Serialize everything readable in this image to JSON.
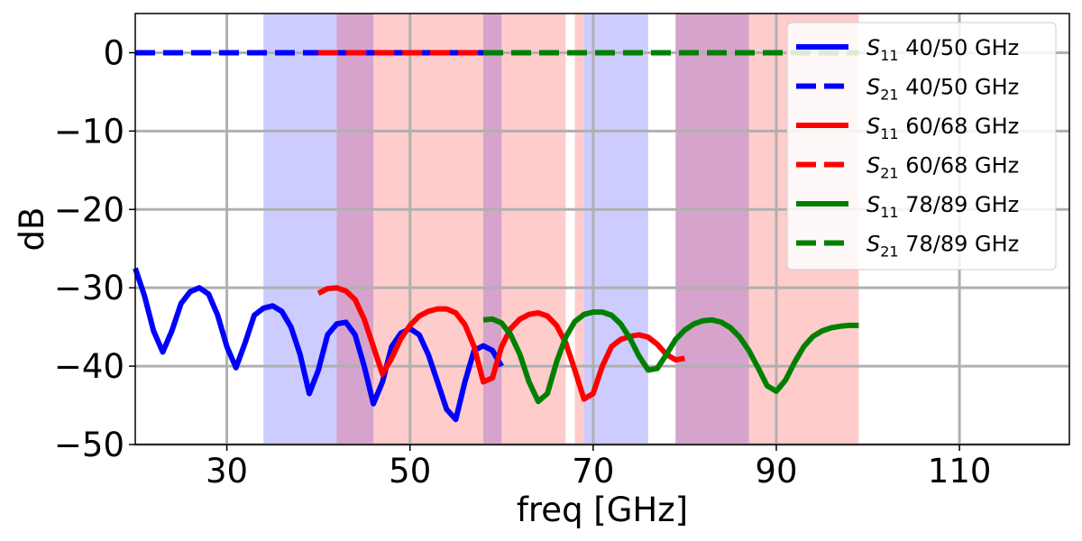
{
  "chart_data": {
    "type": "line",
    "xlabel": "freq [GHz]",
    "ylabel": "dB",
    "xlim": [
      20,
      122
    ],
    "ylim": [
      -50,
      5
    ],
    "grid": true,
    "legend_position": "upper-right",
    "x_ticks": [
      30,
      50,
      70,
      90,
      110
    ],
    "y_ticks": [
      0,
      -10,
      -20,
      -30,
      -40,
      -50
    ],
    "y_tick_labels": [
      "0",
      "−10",
      "−20",
      "−30",
      "−40",
      "−50"
    ],
    "bands": [
      {
        "range": [
          34,
          46
        ],
        "color": "#0000ff",
        "band": "40/50 GHz"
      },
      {
        "range": [
          58,
          60
        ],
        "color": "#0000ff",
        "band": "40/50 GHz"
      },
      {
        "range": [
          69,
          76
        ],
        "color": "#0000ff",
        "band": "40/50 GHz"
      },
      {
        "range": [
          79,
          87
        ],
        "color": "#0000ff",
        "band": "40/50 GHz"
      },
      {
        "range": [
          42,
          53
        ],
        "color": "#ff0000",
        "band": "60/68 GHz"
      },
      {
        "range": [
          53,
          67
        ],
        "color": "#ff0000",
        "band": "60/68 GHz"
      },
      {
        "range": [
          68,
          69
        ],
        "color": "#ff0000",
        "band": "60/68 GHz"
      },
      {
        "range": [
          79,
          99
        ],
        "color": "#ff0000",
        "band": "60/68 GHz"
      }
    ],
    "series": [
      {
        "name_sym": "S",
        "name_sub": "11",
        "name_rest": " 40/50 GHz",
        "color": "#0000ff",
        "dash": false,
        "x": [
          20,
          21,
          22,
          23,
          24,
          25,
          26,
          27,
          28,
          29,
          30,
          31,
          32,
          33,
          34,
          35,
          36,
          37,
          38,
          39,
          40,
          41,
          42,
          43,
          44,
          45,
          46,
          47,
          48,
          49,
          50,
          51,
          52,
          53,
          54,
          55,
          56,
          57,
          58,
          59,
          60
        ],
        "y": [
          -27.5,
          -31,
          -35.5,
          -38.2,
          -35.5,
          -32,
          -30.5,
          -30,
          -30.8,
          -33.5,
          -37.5,
          -40.2,
          -37,
          -33.5,
          -32.6,
          -32.3,
          -33,
          -35,
          -38.5,
          -43.5,
          -40.5,
          -36,
          -34.6,
          -34.4,
          -36,
          -40,
          -44.8,
          -42,
          -37.5,
          -35.8,
          -35.2,
          -36,
          -38.5,
          -42,
          -45.5,
          -46.8,
          -42,
          -38,
          -37.4,
          -38,
          -40
        ]
      },
      {
        "name_sym": "S",
        "name_sub": "21",
        "name_rest": " 40/50 GHz",
        "color": "#0000ff",
        "dash": true,
        "x": [
          20,
          60
        ],
        "y": [
          0,
          0
        ]
      },
      {
        "name_sym": "S",
        "name_sub": "11",
        "name_rest": " 60/68 GHz",
        "color": "#ff0000",
        "dash": false,
        "x": [
          40,
          41,
          42,
          43,
          44,
          45,
          46,
          47,
          48,
          49,
          50,
          51,
          52,
          53,
          54,
          55,
          56,
          57,
          58,
          59,
          60,
          61,
          62,
          63,
          64,
          65,
          66,
          67,
          68,
          69,
          70,
          71,
          72,
          73,
          74,
          75,
          76,
          77,
          78,
          79,
          80
        ],
        "y": [
          -30.7,
          -30.1,
          -30,
          -30.4,
          -31.5,
          -34,
          -37.5,
          -41,
          -39,
          -36.5,
          -34.8,
          -33.6,
          -33,
          -32.7,
          -32.7,
          -33.2,
          -34.7,
          -37.5,
          -42,
          -41.5,
          -37.5,
          -35.2,
          -34,
          -33.4,
          -33.2,
          -33.6,
          -34.8,
          -37,
          -40.5,
          -44.2,
          -43.5,
          -40,
          -37.5,
          -36.6,
          -36.2,
          -36,
          -36.3,
          -37.2,
          -38.5,
          -39.2,
          -39
        ]
      },
      {
        "name_sym": "S",
        "name_sub": "21",
        "name_rest": " 60/68 GHz",
        "color": "#ff0000",
        "dash": true,
        "x": [
          40,
          58
        ],
        "y": [
          0,
          0
        ]
      },
      {
        "name_sym": "S",
        "name_sub": "11",
        "name_rest": " 78/89 GHz",
        "color": "#008000",
        "dash": false,
        "x": [
          58,
          59,
          60,
          61,
          62,
          63,
          64,
          65,
          66,
          67,
          68,
          69,
          70,
          71,
          72,
          73,
          74,
          75,
          76,
          77,
          78,
          79,
          80,
          81,
          82,
          83,
          84,
          85,
          86,
          87,
          88,
          89,
          90,
          91,
          92,
          93,
          94,
          95,
          96,
          97,
          98,
          99
        ],
        "y": [
          -34.1,
          -34,
          -34.5,
          -36,
          -38.5,
          -42,
          -44.5,
          -43.5,
          -39.5,
          -36.3,
          -34.3,
          -33.4,
          -33.1,
          -33.1,
          -33.5,
          -34.6,
          -36.4,
          -38.7,
          -40.5,
          -40.3,
          -38.5,
          -36.6,
          -35.4,
          -34.6,
          -34.2,
          -34.1,
          -34.4,
          -35.1,
          -36.3,
          -38,
          -40.2,
          -42.5,
          -43.2,
          -41.8,
          -39.5,
          -37.5,
          -36.2,
          -35.5,
          -35.1,
          -34.9,
          -34.8,
          -34.8
        ]
      },
      {
        "name_sym": "S",
        "name_sub": "21",
        "name_rest": " 78/89 GHz",
        "color": "#008000",
        "dash": true,
        "x": [
          58,
          99
        ],
        "y": [
          0,
          0
        ]
      }
    ]
  }
}
